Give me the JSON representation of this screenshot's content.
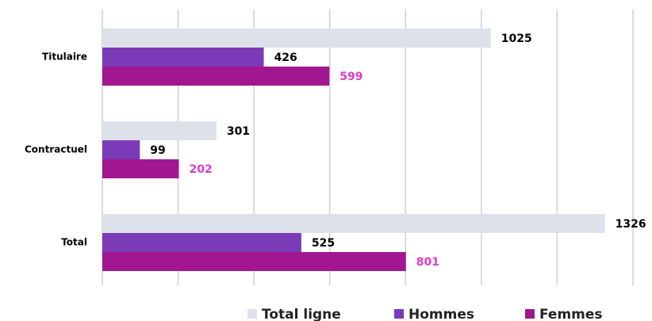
{
  "chart_data": {
    "type": "hbar",
    "categories": [
      "Titulaire",
      "Contractuel",
      "Total"
    ],
    "series": [
      {
        "name": "Total ligne",
        "color": "#dde1e9",
        "label_color": "#000000",
        "values": [
          1025,
          301,
          1326
        ]
      },
      {
        "name": "Hommes",
        "color": "#7b3ab6",
        "label_color": "#000000",
        "values": [
          426,
          99,
          525
        ]
      },
      {
        "name": "Femmes",
        "color": "#a0178f",
        "label_color": "#e03cc8",
        "values": [
          599,
          202,
          801
        ]
      }
    ],
    "xlim": [
      0,
      1400
    ],
    "xticks": [
      0,
      200,
      400,
      600,
      800,
      1000,
      1200,
      1400
    ],
    "grid": true,
    "legend": "bottom"
  }
}
